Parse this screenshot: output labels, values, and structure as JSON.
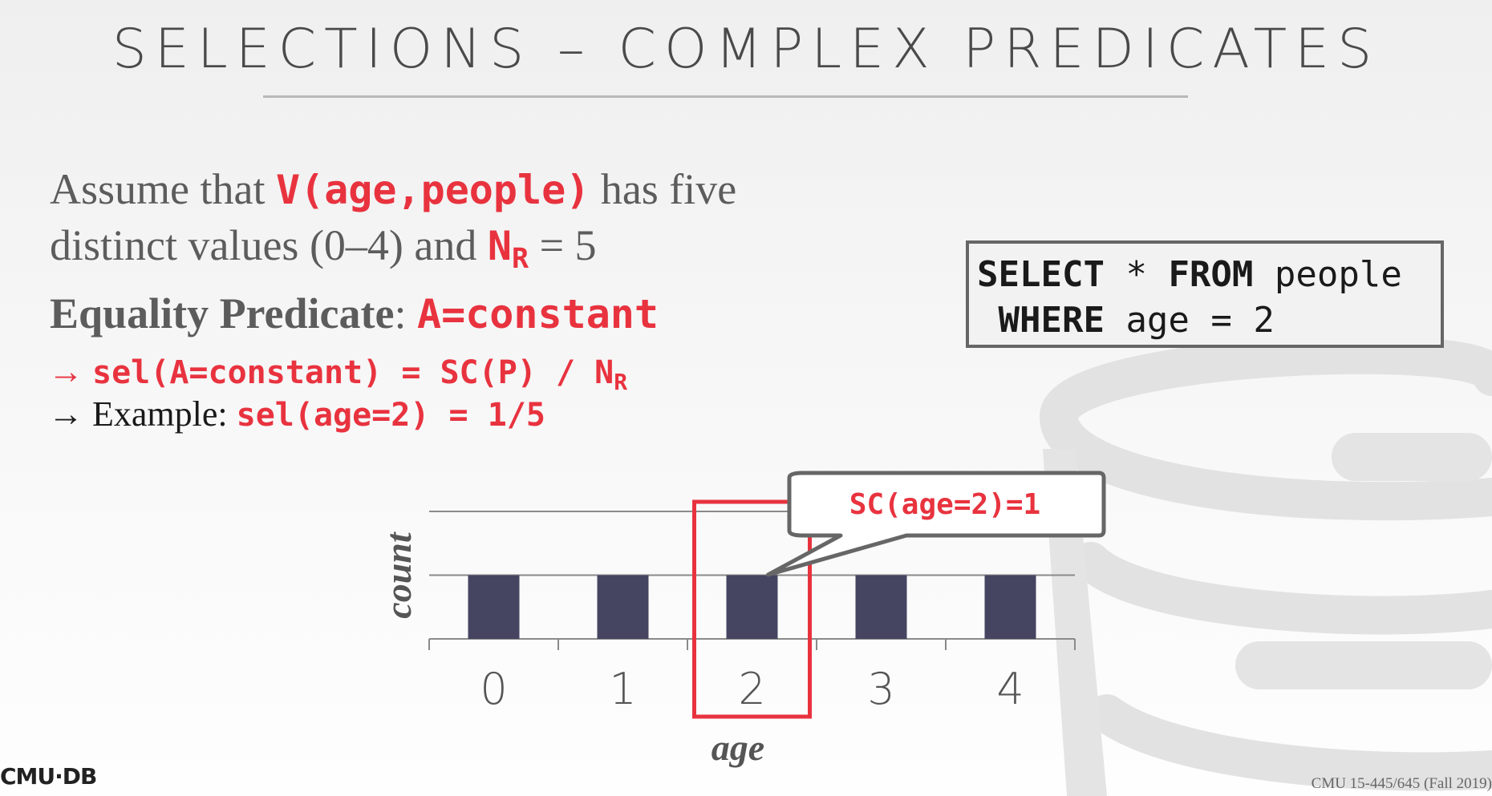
{
  "slide": {
    "title": "SELECTIONS – COMPLEX PREDICATES",
    "para_line1_pre": "Assume that ",
    "para_line1_code": "V(age,people)",
    "para_line1_post": " has five",
    "para_line2_pre": "distinct values (0–4) and ",
    "para_line2_n": "N",
    "para_line2_sub": "R",
    "para_line2_post": " = 5",
    "eq_label": "Equality Predicate",
    "eq_colon": ": ",
    "eq_code": "A=constant",
    "bullet1_arrow": "→ ",
    "bullet1_code": "sel(A=constant) = SC(P) / N",
    "bullet1_sub": "R",
    "bullet2_arrow": "→ ",
    "bullet2_text": "Example: ",
    "bullet2_code": "sel(age=2)",
    "bullet2_eq": " = ",
    "bullet2_val": "1/5",
    "sql_kw1": "SELECT",
    "sql_star": " * ",
    "sql_kw2": "FROM",
    "sql_table": " people",
    "sql_kw3": "WHERE",
    "sql_cond": " age = 2",
    "logo": "CMU·DB",
    "footer": "CMU 15-445/645 (Fall 2019)"
  },
  "chart_data": {
    "type": "bar",
    "categories": [
      "0",
      "1",
      "2",
      "3",
      "4"
    ],
    "values": [
      1,
      1,
      1,
      1,
      1
    ],
    "ylim": [
      0,
      2
    ],
    "xlabel": "age",
    "ylabel": "count",
    "grid": true,
    "highlight_category": "2",
    "callout": "SC(age=2)=1",
    "colors": {
      "bar": "#454562",
      "highlight": "#e8333f",
      "grid": "#8a8a8a",
      "tick_label": "#555555"
    }
  },
  "colors": {
    "accent": "#e8333f",
    "text": "#5c5c5c"
  }
}
